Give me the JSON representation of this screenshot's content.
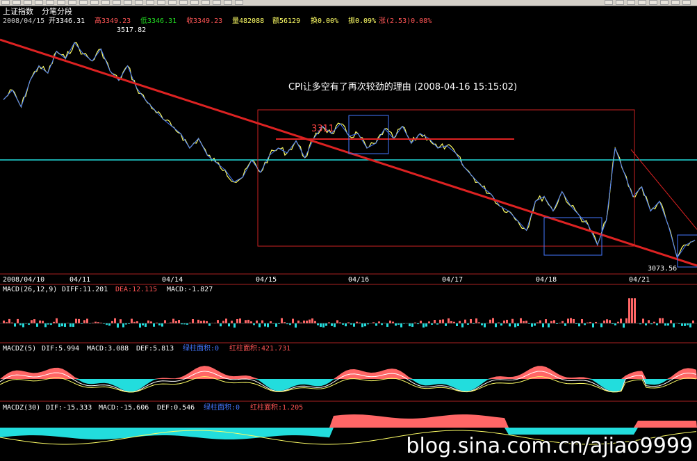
{
  "header": {
    "index_name": "上证指数",
    "mode": "分笔分段",
    "date": "2008/04/15",
    "open": "开3346.31",
    "high": "高3349.23",
    "low": "低3346.31",
    "close": "收3349.23",
    "volume": "量482088",
    "amount": "额56129",
    "turnover": "换0.00%",
    "amplitude": "振0.09%",
    "change": "涨(2.53)0.08%"
  },
  "annotation": "CPI让多空有了再次较劲的理由  (2008-04-16 15:15:02)",
  "watermark": "blog.sina.com.cn/ajiao9999",
  "colors": {
    "price_line": "#ffff66",
    "trend_line": "#dd2222",
    "support_line": "#22dddd",
    "stroke_line": "#4477ff",
    "box_red": "#cc2222",
    "box_blue": "#4477ff",
    "hist_red": "#ff6666",
    "hist_cyan": "#22dddd"
  },
  "chart_data": [
    {
      "type": "line",
      "name": "price",
      "labels": {
        "high_mark": "3517.82",
        "low_mark": "3073.56",
        "level": "3311"
      },
      "x_ticks": [
        "2008/04/10",
        "04/11",
        "04/14",
        "04/15",
        "04/16",
        "04/17",
        "04/18",
        "04/21"
      ],
      "y_range": [
        3060,
        3540
      ],
      "values": [
        3400,
        3420,
        3385,
        3440,
        3470,
        3455,
        3500,
        3485,
        3517.82,
        3495,
        3480,
        3505,
        3460,
        3440,
        3470,
        3425,
        3400,
        3380,
        3360,
        3345,
        3330,
        3300,
        3320,
        3285,
        3270,
        3255,
        3230,
        3240,
        3275,
        3250,
        3285,
        3300,
        3290,
        3315,
        3280,
        3320,
        3345,
        3330,
        3350,
        3325,
        3330,
        3300,
        3310,
        3340,
        3320,
        3345,
        3310,
        3330,
        3320,
        3300,
        3305,
        3290,
        3260,
        3240,
        3220,
        3205,
        3180,
        3170,
        3150,
        3130,
        3190,
        3200,
        3170,
        3210,
        3180,
        3160,
        3140,
        3100,
        3150,
        3300,
        3250,
        3200,
        3220,
        3170,
        3190,
        3140,
        3073.56,
        3100,
        3110
      ]
    },
    {
      "type": "bar",
      "name": "MACD(26,12,9)",
      "legend": {
        "title": "MACD(26,12,9)",
        "diff": "DIFF:11.201",
        "dea": "DEA:12.115",
        "macd": "MACD:-1.827"
      }
    },
    {
      "type": "area",
      "name": "MACDZ(5)",
      "legend": {
        "title": "MACDZ(5)",
        "dif": "DIF:5.994",
        "macd": "MACD:3.088",
        "def": "DEF:5.813",
        "green_area": "绿柱面积:0",
        "red_area": "红柱面积:421.731"
      }
    },
    {
      "type": "area",
      "name": "MACDZ(30)",
      "legend": {
        "title": "MACDZ(30)",
        "dif": "DIF:-15.333",
        "macd": "MACD:-15.606",
        "def": "DEF:0.546",
        "green_area": "绿柱面积:0",
        "red_area": "红柱面积:1.205"
      }
    }
  ]
}
